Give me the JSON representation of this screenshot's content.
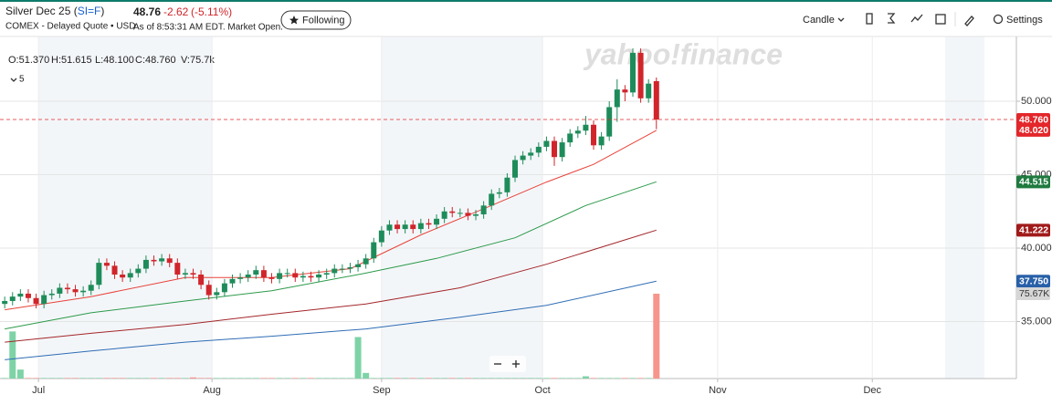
{
  "header": {
    "title_prefix": "Silver Dec 25 (",
    "symbol": "SI=F",
    "title_suffix": ")",
    "subtitle": "COMEX - Delayed Quote • USD",
    "price": "48.76",
    "change": "-2.62",
    "change_pct": "(-5.11%)",
    "as_of": "As of 8:53:31 AM EDT. Market Open.",
    "follow_button": "Following"
  },
  "toolbar": {
    "chart_type": "Candle",
    "settings": "Settings"
  },
  "legend": {
    "ohlc": [
      "O:51.370",
      "H:51.615",
      "L:48.100",
      "C:48.760",
      "V:75.7k"
    ],
    "indicators": "5"
  },
  "watermark": "yahoo!finance",
  "chart_data": {
    "type": "candlestick",
    "open": [
      36.2,
      36.4,
      36.7,
      36.9,
      36.6,
      36.2,
      36.8,
      36.9,
      37.3,
      37.2,
      37.0,
      37.1,
      37.5,
      39.0,
      38.8,
      38.2,
      38.0,
      38.3,
      38.6,
      39.2,
      39.1,
      39.3,
      39.0,
      38.2,
      38.3,
      38.2,
      37.5,
      36.8,
      37.0,
      37.6,
      37.9,
      38.0,
      38.2,
      38.5,
      38.0,
      37.9,
      38.3,
      38.3,
      38.0,
      38.1,
      38.0,
      38.2,
      38.3,
      38.6,
      38.6,
      38.7,
      38.9,
      39.3,
      40.4,
      41.2,
      41.6,
      41.3,
      41.6,
      41.3,
      41.7,
      41.6,
      42.0,
      42.5,
      42.4,
      42.4,
      42.2,
      42.3,
      42.9,
      43.7,
      43.8,
      44.8,
      46.0,
      46.3,
      46.5,
      46.9,
      47.3,
      46.2,
      47.2,
      47.8,
      48.0,
      48.4,
      47.0,
      47.6,
      49.6,
      50.8,
      50.6,
      53.3,
      50.2,
      51.37
    ],
    "high": [
      36.7,
      37.0,
      37.2,
      37.2,
      36.9,
      37.1,
      37.2,
      37.6,
      37.6,
      37.5,
      37.4,
      37.8,
      39.3,
      39.3,
      39.1,
      38.5,
      38.6,
      38.9,
      39.5,
      39.5,
      39.6,
      39.6,
      39.3,
      38.6,
      38.6,
      38.5,
      37.8,
      37.3,
      37.9,
      38.2,
      38.3,
      38.5,
      38.8,
      38.8,
      38.3,
      38.6,
      38.6,
      38.6,
      38.4,
      38.4,
      38.5,
      38.6,
      38.9,
      38.9,
      39.0,
      39.2,
      39.6,
      40.7,
      41.5,
      41.9,
      41.9,
      41.9,
      41.9,
      42.0,
      42.0,
      42.3,
      42.8,
      42.8,
      42.7,
      42.7,
      42.6,
      43.2,
      44.0,
      44.1,
      45.1,
      46.3,
      46.6,
      46.8,
      47.2,
      47.6,
      47.6,
      47.5,
      48.1,
      48.3,
      49.0,
      48.7,
      47.9,
      50.0,
      51.5,
      51.1,
      53.6,
      53.6,
      51.5,
      51.615
    ],
    "low": [
      35.9,
      36.1,
      36.4,
      36.3,
      35.9,
      35.9,
      36.5,
      36.6,
      36.9,
      36.7,
      36.7,
      36.8,
      37.2,
      38.5,
      37.9,
      37.7,
      37.7,
      38.0,
      38.3,
      38.8,
      38.8,
      38.7,
      37.9,
      37.9,
      37.9,
      37.2,
      36.5,
      36.5,
      36.7,
      37.3,
      37.6,
      37.7,
      37.9,
      37.7,
      37.6,
      37.6,
      38.0,
      37.7,
      37.7,
      37.7,
      37.7,
      37.9,
      38.0,
      38.3,
      38.3,
      38.4,
      38.6,
      39.0,
      40.1,
      40.9,
      41.0,
      41.0,
      41.0,
      41.0,
      41.3,
      41.3,
      41.7,
      42.1,
      42.1,
      41.9,
      41.9,
      42.0,
      42.6,
      43.4,
      43.5,
      44.5,
      45.7,
      46.0,
      46.2,
      46.6,
      45.6,
      45.9,
      46.9,
      47.5,
      47.7,
      46.7,
      46.7,
      47.3,
      48.6,
      50.0,
      50.3,
      49.9,
      49.9,
      48.1
    ],
    "close": [
      36.4,
      36.7,
      36.9,
      36.6,
      36.2,
      36.8,
      36.9,
      37.3,
      37.2,
      37.0,
      37.1,
      37.5,
      39.0,
      38.8,
      38.2,
      38.0,
      38.3,
      38.6,
      39.2,
      39.1,
      39.3,
      39.0,
      38.2,
      38.3,
      38.2,
      37.5,
      36.8,
      37.0,
      37.6,
      37.9,
      38.0,
      38.2,
      38.5,
      38.0,
      37.9,
      38.3,
      38.3,
      38.0,
      38.1,
      38.0,
      38.2,
      38.3,
      38.6,
      38.6,
      38.7,
      38.9,
      39.3,
      40.4,
      41.2,
      41.6,
      41.3,
      41.6,
      41.3,
      41.7,
      41.6,
      42.0,
      42.5,
      42.4,
      42.4,
      42.2,
      42.3,
      42.9,
      43.7,
      43.8,
      44.8,
      46.0,
      46.3,
      46.5,
      46.9,
      47.3,
      46.2,
      47.2,
      47.8,
      48.0,
      48.4,
      47.0,
      47.6,
      49.6,
      50.8,
      50.6,
      53.3,
      50.2,
      51.2,
      48.76
    ],
    "volume": [
      500,
      42000,
      8000,
      500,
      500,
      500,
      500,
      500,
      500,
      500,
      500,
      500,
      500,
      500,
      500,
      500,
      500,
      500,
      500,
      500,
      500,
      500,
      500,
      500,
      1000,
      500,
      500,
      500,
      500,
      500,
      500,
      500,
      500,
      500,
      500,
      500,
      500,
      500,
      500,
      500,
      500,
      500,
      500,
      500,
      500,
      37000,
      5000,
      500,
      500,
      500,
      500,
      500,
      500,
      500,
      500,
      500,
      500,
      500,
      500,
      500,
      500,
      500,
      500,
      500,
      500,
      500,
      500,
      500,
      500,
      500,
      500,
      500,
      500,
      500,
      2000,
      500,
      500,
      500,
      500,
      500,
      500,
      500,
      500,
      75670
    ],
    "volume_lim": [
      0,
      305000
    ],
    "volume_last_label": "75.67K",
    "up_color": "#1e8c5a",
    "down_color": "#d0252b",
    "volume_up_color": "#7dd3a6",
    "volume_down_color": "#f6958c",
    "series": [
      {
        "color": "#e8423a",
        "x": [
          0,
          11,
          23,
          34,
          44,
          53,
          62,
          69,
          75,
          83
        ],
        "values": [
          35.8,
          36.7,
          38.0,
          38.0,
          38.6,
          40.9,
          42.9,
          44.5,
          45.7,
          48.02
        ]
      },
      {
        "color": "#2c9a4a",
        "x": [
          0,
          11,
          23,
          34,
          46,
          55,
          65,
          74,
          83
        ],
        "values": [
          34.5,
          35.6,
          36.4,
          37.1,
          38.3,
          39.3,
          40.7,
          42.9,
          44.515
        ]
      },
      {
        "color": "#a3262a",
        "x": [
          0,
          11,
          23,
          34,
          46,
          58,
          69,
          83
        ],
        "values": [
          33.6,
          34.2,
          34.8,
          35.5,
          36.2,
          37.3,
          38.9,
          41.222
        ]
      },
      {
        "color": "#2f6db5",
        "x": [
          0,
          11,
          23,
          34,
          46,
          58,
          69,
          83
        ],
        "values": [
          32.4,
          33.0,
          33.6,
          34.0,
          34.5,
          35.3,
          36.1,
          37.75
        ]
      }
    ],
    "tags": [
      {
        "value": 48.76,
        "label": "48.760",
        "color": "#e3262a"
      },
      {
        "value": 48.02,
        "label": "48.020",
        "color": "#e3262a"
      },
      {
        "value": 44.515,
        "label": "44.515",
        "color": "#1f7a3f"
      },
      {
        "value": 41.222,
        "label": "41.222",
        "color": "#a11a1a"
      },
      {
        "value": 37.75,
        "label": "37.750",
        "color": "#2860a8"
      }
    ],
    "xlim": [
      -0.6,
      128.5
    ],
    "xticks": [
      {
        "value": 4.3,
        "label": "Jul"
      },
      {
        "value": 26.4,
        "label": "Aug"
      },
      {
        "value": 48,
        "label": "Sep"
      },
      {
        "value": 68.5,
        "label": "Oct"
      },
      {
        "value": 90.8,
        "label": "Nov"
      },
      {
        "value": 110.5,
        "label": "Dec"
      }
    ],
    "ylim": [
      31.12,
      54.41
    ],
    "yticks": [
      {
        "value": 35,
        "label": "35.000"
      },
      {
        "value": 40,
        "label": "40.000"
      },
      {
        "value": 45,
        "label": "45.000"
      },
      {
        "value": 50,
        "label": "50.000"
      }
    ],
    "grid": true
  }
}
